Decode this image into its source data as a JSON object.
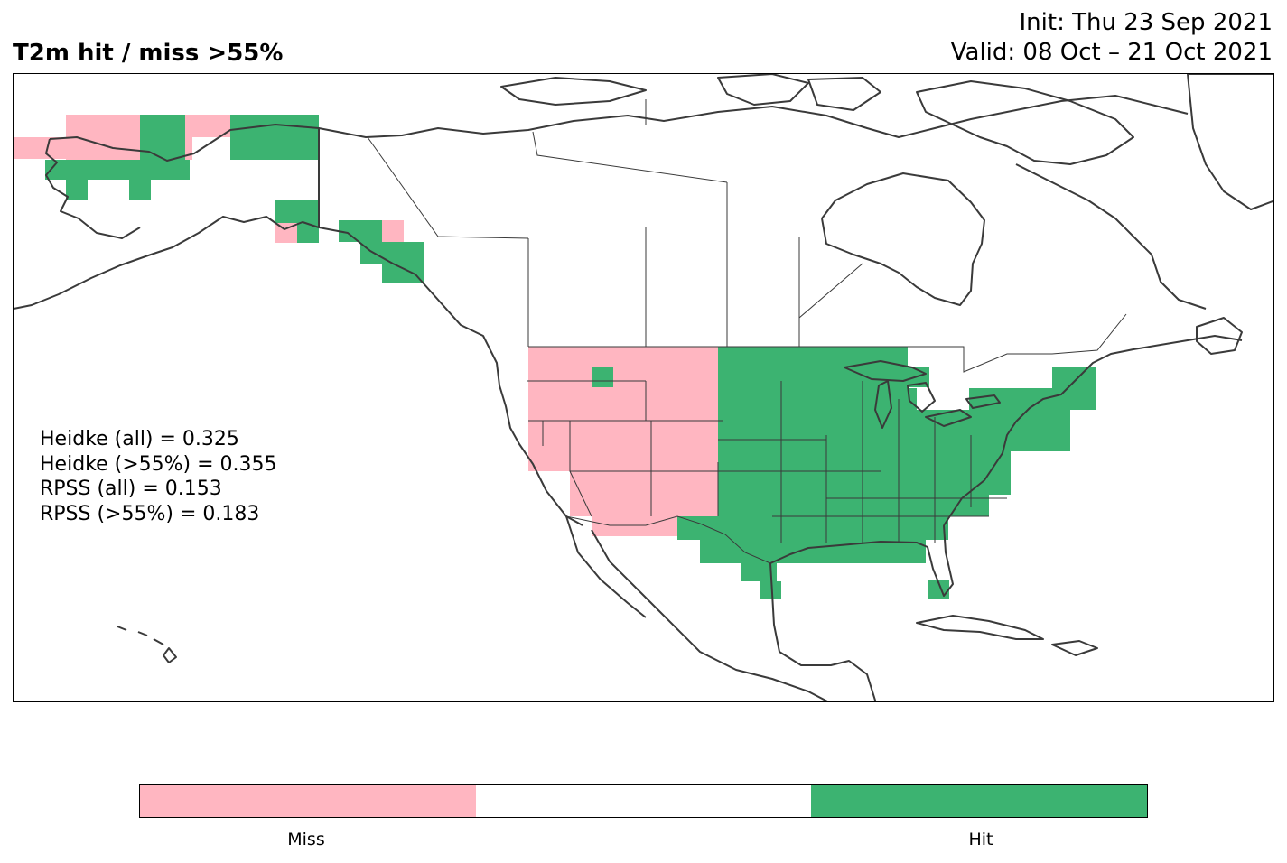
{
  "header": {
    "title": "T2m hit / miss  >55%",
    "init": "Init: Thu 23 Sep 2021",
    "valid": "Valid: 08 Oct – 21 Oct 2021"
  },
  "scores": [
    "Heidke (all) = 0.325",
    "Heidke (>55%) = 0.355",
    "RPSS (all) = 0.153",
    "RPSS (>55%) = 0.183"
  ],
  "colors": {
    "miss": "#ffb6c1",
    "neutral": "#ffffff",
    "hit": "#3cb371",
    "coast": "#3a3a3a"
  },
  "colorbar": {
    "labels": [
      "Miss",
      "Hit"
    ]
  }
}
